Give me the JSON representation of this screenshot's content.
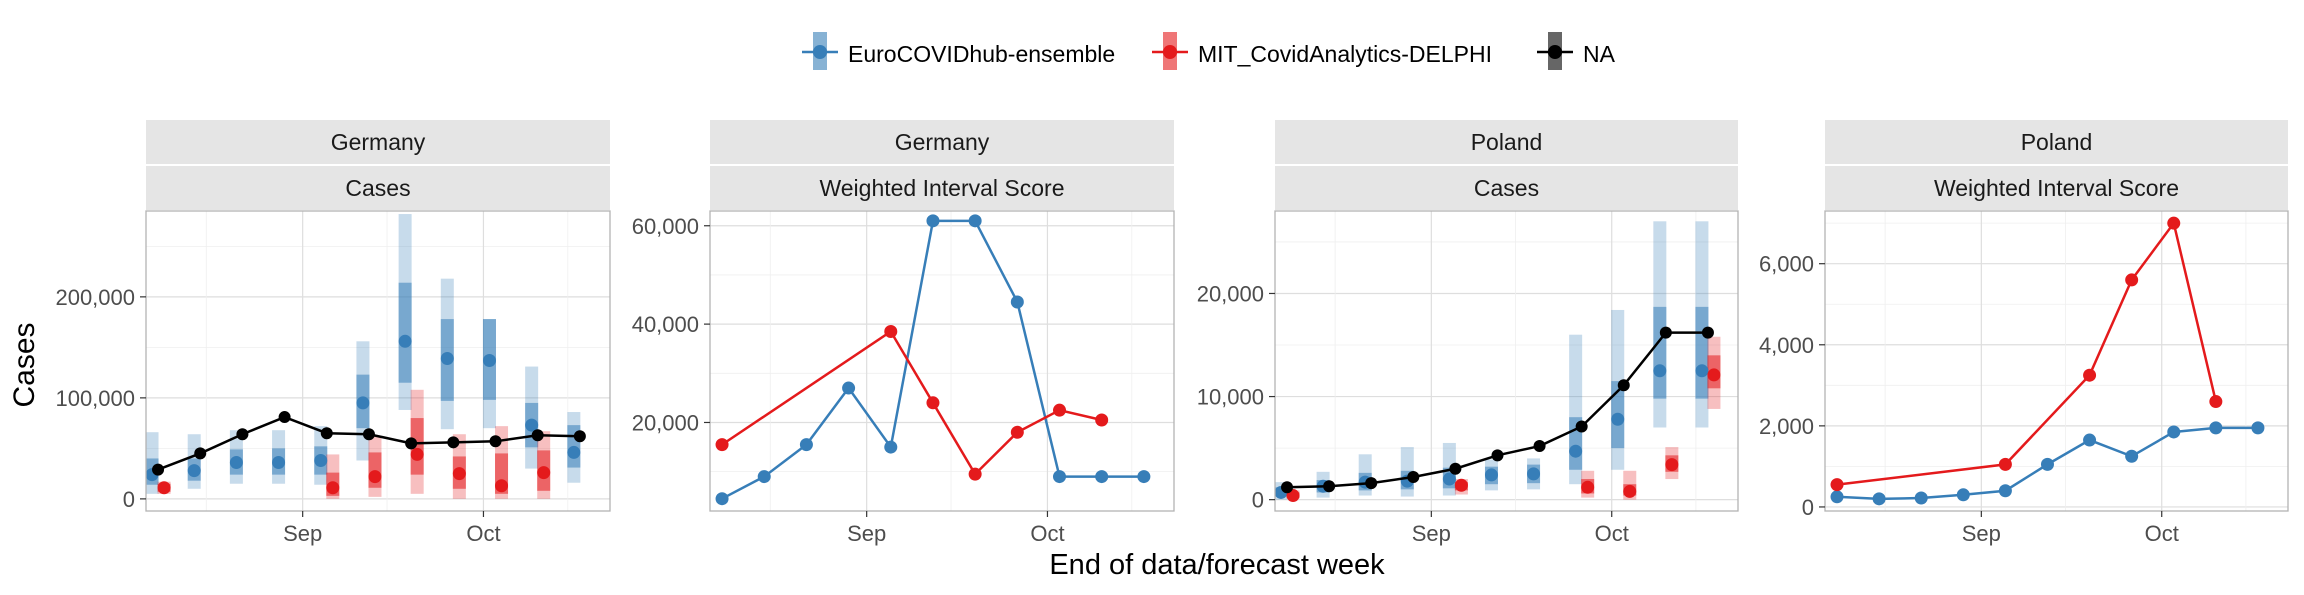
{
  "figure": {
    "ylabel": "Cases",
    "xlabel": "End of data/forecast week"
  },
  "legend": [
    {
      "label": "EuroCOVIDhub-ensemble",
      "color": "#377eb8"
    },
    {
      "label": "MIT_CovidAnalytics-DELPHI",
      "color": "#e41a1c"
    },
    {
      "label": "NA",
      "color": "#000000"
    }
  ],
  "chart_data": [
    {
      "type": "line",
      "strip_top": "Germany",
      "strip_bottom": "Cases",
      "ylim": [
        -12000,
        285000
      ],
      "yticks": [
        0,
        100000,
        200000
      ],
      "ytick_labels": [
        "0",
        "100,000",
        "200,000"
      ],
      "xticks": [
        "Sep",
        "Oct"
      ],
      "xlim": [
        "2021-08-06",
        "2021-10-22"
      ],
      "grid": true,
      "truth": {
        "x": [
          "2021-08-08",
          "2021-08-15",
          "2021-08-22",
          "2021-08-29",
          "2021-09-05",
          "2021-09-12",
          "2021-09-19",
          "2021-09-26",
          "2021-10-03",
          "2021-10-10",
          "2021-10-17"
        ],
        "y": [
          29000,
          45000,
          64000,
          81000,
          65000,
          64000,
          55000,
          56000,
          57000,
          63000,
          62000
        ]
      },
      "forecasts": [
        {
          "model": "EuroCOVIDhub-ensemble",
          "x": [
            "2021-08-07",
            "2021-08-14",
            "2021-08-21",
            "2021-08-28",
            "2021-09-04",
            "2021-09-11",
            "2021-09-18",
            "2021-09-25",
            "2021-10-02",
            "2021-10-09",
            "2021-10-16"
          ],
          "median": [
            24000,
            28000,
            36000,
            36000,
            38000,
            95000,
            156000,
            139000,
            137000,
            73000,
            46000
          ],
          "q50": [
            [
              14000,
              40000
            ],
            [
              18000,
              40000
            ],
            [
              24000,
              49000
            ],
            [
              24000,
              50000
            ],
            [
              24000,
              52000
            ],
            [
              70000,
              123000
            ],
            [
              115000,
              214000
            ],
            [
              97000,
              178000
            ],
            [
              98000,
              178000
            ],
            [
              51000,
              95000
            ],
            [
              31000,
              73000
            ]
          ],
          "q95": [
            [
              5000,
              66000
            ],
            [
              10000,
              64000
            ],
            [
              15000,
              68000
            ],
            [
              15000,
              68000
            ],
            [
              14000,
              72000
            ],
            [
              38000,
              156000
            ],
            [
              88000,
              282000
            ],
            [
              69000,
              218000
            ],
            [
              70000,
              178000
            ],
            [
              30000,
              131000
            ],
            [
              16000,
              86000
            ]
          ]
        },
        {
          "model": "MIT_CovidAnalytics-DELPHI",
          "x": [
            "2021-08-09",
            "2021-09-06",
            "2021-09-13",
            "2021-09-20",
            "2021-09-27",
            "2021-10-04",
            "2021-10-11"
          ],
          "median": [
            11000,
            11000,
            22000,
            44000,
            25000,
            13000,
            26000
          ],
          "q50": [
            [
              7000,
              15000
            ],
            [
              3000,
              26000
            ],
            [
              11000,
              46000
            ],
            [
              24000,
              80000
            ],
            [
              10000,
              42000
            ],
            [
              5000,
              45000
            ],
            [
              8000,
              48000
            ]
          ],
          "q95": [
            [
              5000,
              17000
            ],
            [
              0,
              44000
            ],
            [
              2000,
              62000
            ],
            [
              5000,
              108000
            ],
            [
              0,
              64000
            ],
            [
              0,
              72000
            ],
            [
              0,
              67000
            ]
          ]
        }
      ]
    },
    {
      "type": "line",
      "strip_top": "Germany",
      "strip_bottom": "Weighted Interval Score",
      "ylim": [
        2000,
        63000
      ],
      "yticks": [
        20000,
        40000,
        60000
      ],
      "ytick_labels": [
        "20,000",
        "40,000",
        "60,000"
      ],
      "xticks": [
        "Sep",
        "Oct"
      ],
      "xlim": [
        "2021-08-06",
        "2021-10-22"
      ],
      "grid": true,
      "series": [
        {
          "name": "EuroCOVIDhub-ensemble",
          "x": [
            "2021-08-08",
            "2021-08-15",
            "2021-08-22",
            "2021-08-29",
            "2021-09-05",
            "2021-09-12",
            "2021-09-19",
            "2021-09-26",
            "2021-10-03",
            "2021-10-10",
            "2021-10-17"
          ],
          "values": [
            4500,
            9000,
            15500,
            27000,
            15000,
            61000,
            61000,
            44500,
            9000,
            9000,
            9000
          ]
        },
        {
          "name": "MIT_CovidAnalytics-DELPHI",
          "x": [
            "2021-08-08",
            "2021-09-05",
            "2021-09-12",
            "2021-09-19",
            "2021-09-26",
            "2021-10-03",
            "2021-10-10"
          ],
          "values": [
            15500,
            38500,
            24000,
            9500,
            18000,
            22500,
            20500
          ]
        }
      ]
    },
    {
      "type": "line",
      "strip_top": "Poland",
      "strip_bottom": "Cases",
      "ylim": [
        -1100,
        28000
      ],
      "yticks": [
        0,
        10000,
        20000
      ],
      "ytick_labels": [
        "0",
        "10,000",
        "20,000"
      ],
      "xticks": [
        "Sep",
        "Oct"
      ],
      "xlim": [
        "2021-08-06",
        "2021-10-22"
      ],
      "grid": true,
      "truth": {
        "x": [
          "2021-08-08",
          "2021-08-15",
          "2021-08-22",
          "2021-08-29",
          "2021-09-05",
          "2021-09-12",
          "2021-09-19",
          "2021-09-26",
          "2021-10-03",
          "2021-10-10",
          "2021-10-17"
        ],
        "y": [
          1200,
          1300,
          1600,
          2200,
          3000,
          4300,
          5200,
          7100,
          11100,
          16200,
          16200
        ]
      },
      "forecasts": [
        {
          "model": "EuroCOVIDhub-ensemble",
          "x": [
            "2021-08-07",
            "2021-08-14",
            "2021-08-21",
            "2021-08-28",
            "2021-09-04",
            "2021-09-11",
            "2021-09-18",
            "2021-09-25",
            "2021-10-02",
            "2021-10-09",
            "2021-10-16"
          ],
          "median": [
            700,
            1300,
            1700,
            1800,
            2000,
            2400,
            2500,
            4700,
            7800,
            12500,
            12500
          ],
          "q50": [
            [
              300,
              1200
            ],
            [
              700,
              1900
            ],
            [
              900,
              2600
            ],
            [
              1000,
              2800
            ],
            [
              1100,
              3100
            ],
            [
              1500,
              3200
            ],
            [
              1600,
              3400
            ],
            [
              2900,
              8000
            ],
            [
              5000,
              11500
            ],
            [
              9800,
              18700
            ],
            [
              9800,
              18700
            ]
          ],
          "q95": [
            [
              0,
              1700
            ],
            [
              200,
              2700
            ],
            [
              400,
              4400
            ],
            [
              300,
              5100
            ],
            [
              400,
              5500
            ],
            [
              900,
              3900
            ],
            [
              1000,
              4000
            ],
            [
              1500,
              16000
            ],
            [
              2900,
              18400
            ],
            [
              7000,
              27000
            ],
            [
              7000,
              27000
            ]
          ]
        },
        {
          "model": "MIT_CovidAnalytics-DELPHI",
          "x": [
            "2021-08-09",
            "2021-09-06",
            "2021-09-27",
            "2021-10-04",
            "2021-10-11",
            "2021-10-18"
          ],
          "median": [
            400,
            1400,
            1200,
            800,
            3400,
            12100
          ],
          "q50": [
            [
              200,
              700
            ],
            [
              900,
              1700
            ],
            [
              600,
              2000
            ],
            [
              400,
              1500
            ],
            [
              2700,
              4300
            ],
            [
              10800,
              14000
            ]
          ],
          "q95": [
            [
              100,
              900
            ],
            [
              500,
              2000
            ],
            [
              200,
              2800
            ],
            [
              0,
              2800
            ],
            [
              2000,
              5100
            ],
            [
              8800,
              15800
            ]
          ]
        }
      ]
    },
    {
      "type": "line",
      "strip_top": "Poland",
      "strip_bottom": "Weighted Interval Score",
      "ylim": [
        -100,
        7300
      ],
      "yticks": [
        0,
        2000,
        4000,
        6000
      ],
      "ytick_labels": [
        "0",
        "2,000",
        "4,000",
        "6,000"
      ],
      "xticks": [
        "Sep",
        "Oct"
      ],
      "xlim": [
        "2021-08-06",
        "2021-10-22"
      ],
      "grid": true,
      "series": [
        {
          "name": "EuroCOVIDhub-ensemble",
          "x": [
            "2021-08-08",
            "2021-08-15",
            "2021-08-22",
            "2021-08-29",
            "2021-09-05",
            "2021-09-12",
            "2021-09-19",
            "2021-09-26",
            "2021-10-03",
            "2021-10-10",
            "2021-10-17"
          ],
          "values": [
            250,
            200,
            220,
            300,
            400,
            1050,
            1650,
            1250,
            1850,
            1950,
            1950
          ]
        },
        {
          "name": "MIT_CovidAnalytics-DELPHI",
          "x": [
            "2021-08-08",
            "2021-09-05",
            "2021-09-19",
            "2021-09-26",
            "2021-10-03",
            "2021-10-10"
          ],
          "values": [
            550,
            1050,
            3250,
            5600,
            7000,
            2600
          ]
        }
      ]
    }
  ]
}
